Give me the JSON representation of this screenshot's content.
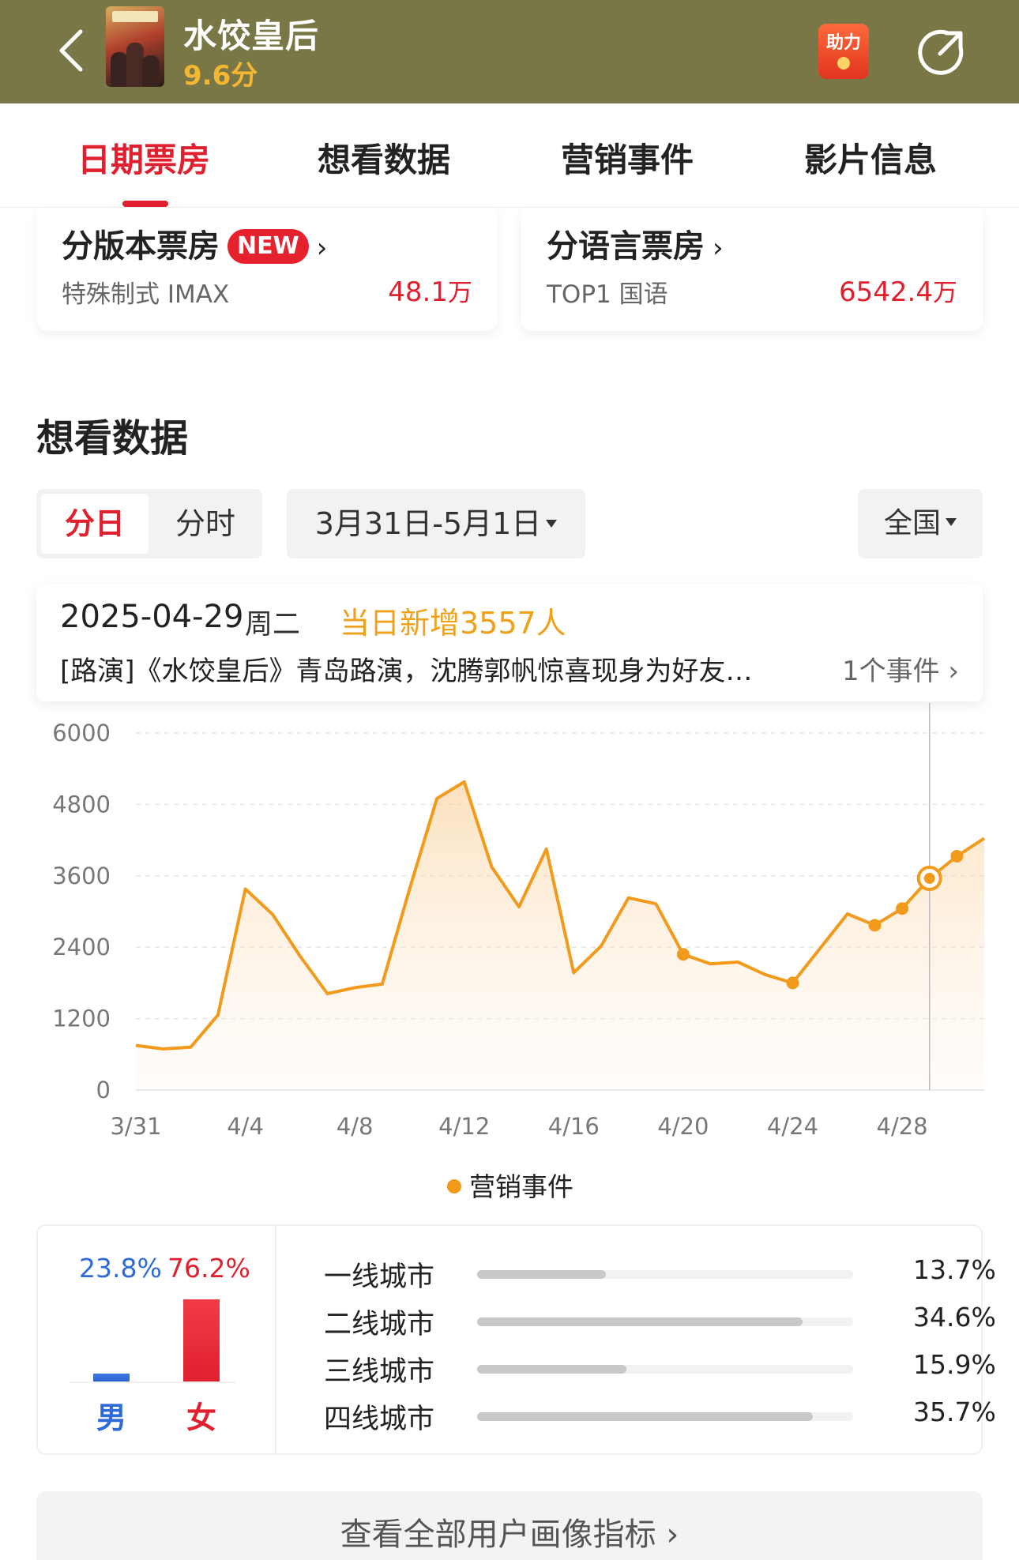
{
  "header": {
    "title": "水饺皇后",
    "score": "9.6分",
    "help_label": "助力"
  },
  "tabs": [
    {
      "label": "日期票房",
      "active": true
    },
    {
      "label": "想看数据",
      "active": false
    },
    {
      "label": "营销事件",
      "active": false
    },
    {
      "label": "影片信息",
      "active": false
    }
  ],
  "cards": {
    "version": {
      "title": "分版本票房",
      "badge": "NEW",
      "chevron": "›",
      "sub": "特殊制式 IMAX",
      "value": "48.1",
      "unit": "万"
    },
    "language": {
      "title": "分语言票房",
      "chevron": "›",
      "sub": "TOP1 国语",
      "value": "6542.4",
      "unit": "万"
    }
  },
  "want_section": {
    "title": "想看数据",
    "seg_daily": "分日",
    "seg_hourly": "分时",
    "date_range": "3月31日-5月1日",
    "region": "全国"
  },
  "tooltip": {
    "date": "2025-04-29",
    "weekday": "周二",
    "new_today": "当日新增3557人",
    "event": "[路演]《水饺皇后》青岛路演，沈腾郭帆惊喜现身为好友…",
    "event_count": "1个事件 ›"
  },
  "chart_data": {
    "type": "area",
    "x": [
      "3/31",
      "4/1",
      "4/2",
      "4/3",
      "4/4",
      "4/5",
      "4/6",
      "4/7",
      "4/8",
      "4/9",
      "4/10",
      "4/11",
      "4/12",
      "4/13",
      "4/14",
      "4/15",
      "4/16",
      "4/17",
      "4/18",
      "4/19",
      "4/20",
      "4/21",
      "4/22",
      "4/23",
      "4/24",
      "4/25",
      "4/26",
      "4/27",
      "4/28",
      "4/29",
      "4/30",
      "5/1"
    ],
    "values": [
      750,
      690,
      720,
      1260,
      3380,
      2950,
      2250,
      1620,
      1720,
      1780,
      3380,
      4900,
      5180,
      3750,
      3080,
      4050,
      1970,
      2420,
      3230,
      3130,
      2280,
      2120,
      2150,
      1940,
      1800,
      2380,
      2960,
      2770,
      3050,
      3557,
      3930,
      4230
    ],
    "event_points": [
      20,
      24,
      27,
      28,
      30
    ],
    "selected_index": 29,
    "x_ticks": [
      "3/31",
      "4/4",
      "4/8",
      "4/12",
      "4/16",
      "4/20",
      "4/24",
      "4/28"
    ],
    "y_ticks": [
      0,
      1200,
      2400,
      3600,
      4800,
      6000
    ],
    "ylim": [
      0,
      6000
    ],
    "grid": true,
    "legend": "营销事件",
    "legend_position": "bottom-center",
    "line_color": "#f29a1c"
  },
  "demographics": {
    "male_pct": "23.8%",
    "female_pct": "76.2%",
    "male_value": 23.8,
    "female_value": 76.2,
    "male_label": "男",
    "female_label": "女",
    "city_tiers": [
      {
        "name": "一线城市",
        "pct": "13.7%",
        "value": 13.7
      },
      {
        "name": "二线城市",
        "pct": "34.6%",
        "value": 34.6
      },
      {
        "name": "三线城市",
        "pct": "15.9%",
        "value": 15.9
      },
      {
        "name": "四线城市",
        "pct": "35.7%",
        "value": 35.7
      }
    ]
  },
  "more_button": "查看全部用户画像指标 ›"
}
